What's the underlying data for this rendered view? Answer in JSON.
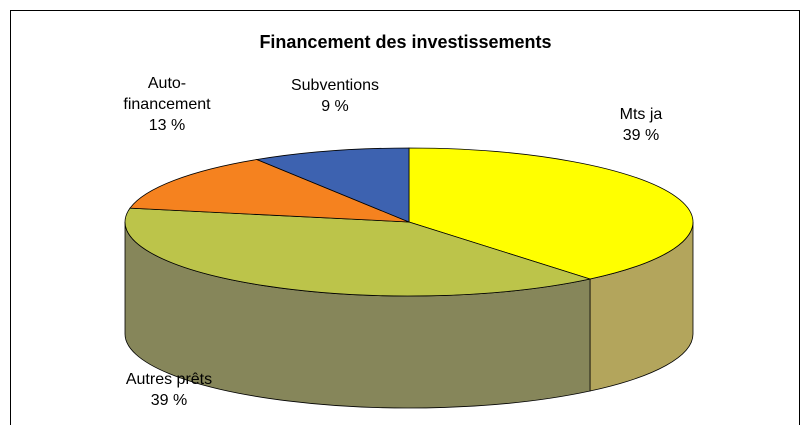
{
  "chart_data": {
    "type": "pie3d",
    "title": "Financement des investissements",
    "categories": [
      "Mts ja",
      "Autres prêts",
      "Auto-financement",
      "Subventions"
    ],
    "values": [
      39,
      39,
      13,
      9
    ],
    "value_labels": [
      "39 %",
      "39 %",
      "13 %",
      "9 %"
    ],
    "colors": [
      "#ffff00",
      "#bcc44a",
      "#f5821f",
      "#3d62b0"
    ],
    "side_colors": [
      "#b3a55c",
      "#86865a",
      "#a8561a",
      "#2a4478"
    ]
  }
}
